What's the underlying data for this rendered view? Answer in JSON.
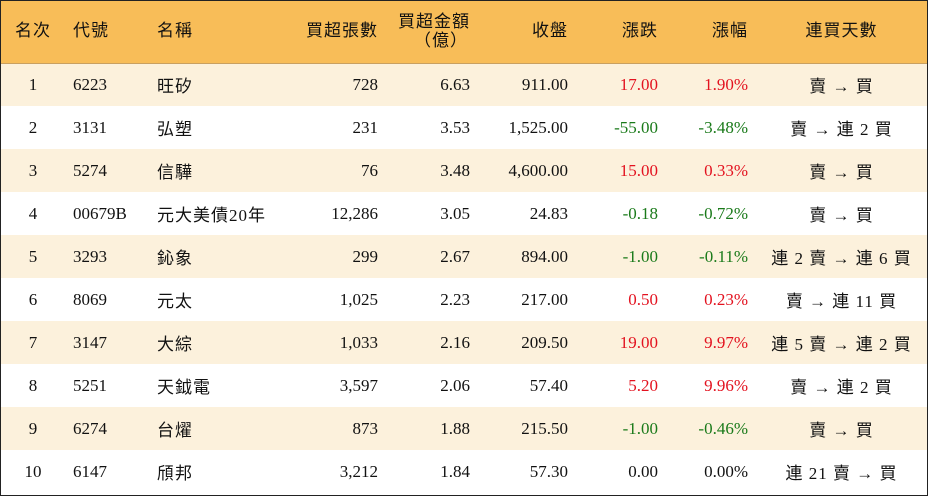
{
  "headers": {
    "rank": "名次",
    "code": "代號",
    "name": "名稱",
    "net_lots": "買超張數",
    "net_amount_line1": "買超金額",
    "net_amount_line2": "（億）",
    "close": "收盤",
    "change": "漲跌",
    "change_pct": "漲幅",
    "streak": "連買天數"
  },
  "rows": [
    {
      "rank": "1",
      "code": "6223",
      "name": "旺矽",
      "net_lots": "728",
      "net_amount": "6.63",
      "close": "911.00",
      "change": "17.00",
      "change_pct": "1.90%",
      "streak": "賣 → 買",
      "trend": "up"
    },
    {
      "rank": "2",
      "code": "3131",
      "name": "弘塑",
      "net_lots": "231",
      "net_amount": "3.53",
      "close": "1,525.00",
      "change": "-55.00",
      "change_pct": "-3.48%",
      "streak": "賣 → 連 2 買",
      "trend": "down"
    },
    {
      "rank": "3",
      "code": "5274",
      "name": "信驊",
      "net_lots": "76",
      "net_amount": "3.48",
      "close": "4,600.00",
      "change": "15.00",
      "change_pct": "0.33%",
      "streak": "賣 → 買",
      "trend": "up"
    },
    {
      "rank": "4",
      "code": "00679B",
      "name": "元大美債20年",
      "net_lots": "12,286",
      "net_amount": "3.05",
      "close": "24.83",
      "change": "-0.18",
      "change_pct": "-0.72%",
      "streak": "賣 → 買",
      "trend": "down"
    },
    {
      "rank": "5",
      "code": "3293",
      "name": "鈊象",
      "net_lots": "299",
      "net_amount": "2.67",
      "close": "894.00",
      "change": "-1.00",
      "change_pct": "-0.11%",
      "streak": "連 2 賣 → 連 6 買",
      "trend": "down"
    },
    {
      "rank": "6",
      "code": "8069",
      "name": "元太",
      "net_lots": "1,025",
      "net_amount": "2.23",
      "close": "217.00",
      "change": "0.50",
      "change_pct": "0.23%",
      "streak": "賣 → 連 11 買",
      "trend": "up"
    },
    {
      "rank": "7",
      "code": "3147",
      "name": "大綜",
      "net_lots": "1,033",
      "net_amount": "2.16",
      "close": "209.50",
      "change": "19.00",
      "change_pct": "9.97%",
      "streak": "連 5 賣 → 連 2 買",
      "trend": "up"
    },
    {
      "rank": "8",
      "code": "5251",
      "name": "天鉞電",
      "net_lots": "3,597",
      "net_amount": "2.06",
      "close": "57.40",
      "change": "5.20",
      "change_pct": "9.96%",
      "streak": "賣 → 連 2 買",
      "trend": "up"
    },
    {
      "rank": "9",
      "code": "6274",
      "name": "台燿",
      "net_lots": "873",
      "net_amount": "1.88",
      "close": "215.50",
      "change": "-1.00",
      "change_pct": "-0.46%",
      "streak": "賣 → 買",
      "trend": "down"
    },
    {
      "rank": "10",
      "code": "6147",
      "name": "頎邦",
      "net_lots": "3,212",
      "net_amount": "1.84",
      "close": "57.30",
      "change": "0.00",
      "change_pct": "0.00%",
      "streak": "連 21 賣 → 買",
      "trend": "flat"
    }
  ],
  "colors": {
    "header_bg": "#f8bd58",
    "odd_row_bg": "#fcf1dc",
    "up": "#e3121f",
    "down": "#1a7a1a"
  }
}
